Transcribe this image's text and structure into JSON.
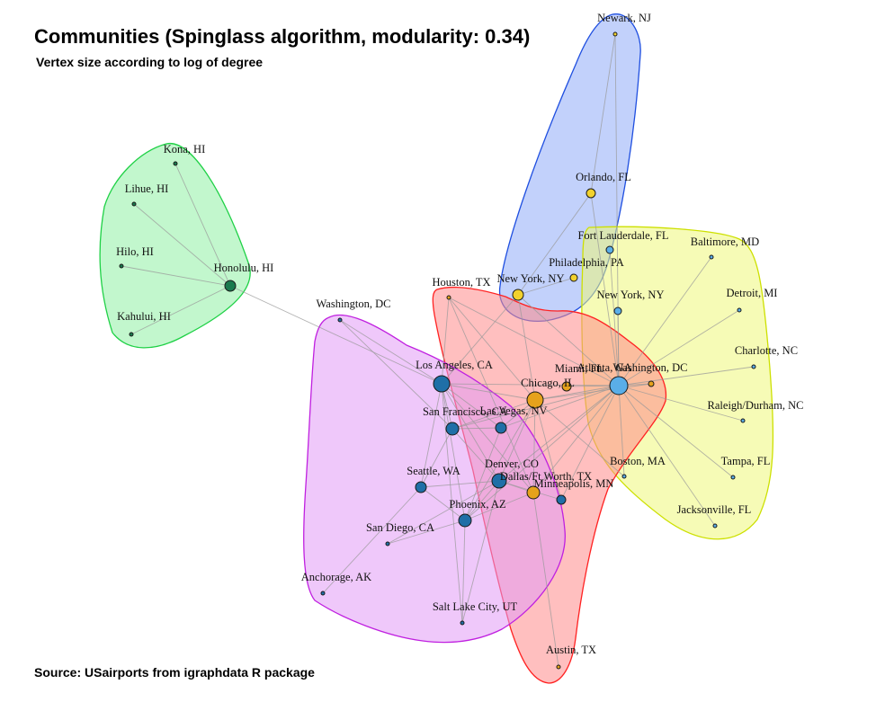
{
  "title": "Communities (Spinglass algorithm, modularity: 0.34)",
  "subtitle": "Vertex size according to log of degree",
  "caption": "Source: USairports from igraphdata R package",
  "colors": {
    "hawaii_fill": "#8ff0a4",
    "hawaii_border": "#1fd146",
    "northeast_fill": "#90acf7",
    "northeast_border": "#1f4fe0",
    "east_fill": "#eef77a",
    "east_border": "#cde000",
    "central_fill": "#ff8a8a",
    "central_border": "#ff2222",
    "west_fill": "#e29af5",
    "west_border": "#c020e0",
    "node_dark_green": "#1a7a4e",
    "node_dark_blue": "#1f6fa7",
    "node_light_blue": "#5aaee8",
    "node_yellow": "#f2d22e",
    "node_orange": "#e6a21c",
    "edge": "#9a9a9a"
  },
  "nodes": [
    {
      "id": "kona",
      "label": "Kona, HI",
      "color": "#1a7a4e"
    },
    {
      "id": "lihue",
      "label": "Lihue, HI",
      "color": "#1a7a4e"
    },
    {
      "id": "hilo",
      "label": "Hilo, HI",
      "color": "#1a7a4e"
    },
    {
      "id": "honolulu",
      "label": "Honolulu, HI",
      "color": "#1a7a4e"
    },
    {
      "id": "kahului",
      "label": "Kahului, HI",
      "color": "#1a7a4e"
    },
    {
      "id": "newark",
      "label": "Newark, NJ",
      "color": "#f2d22e"
    },
    {
      "id": "orlando",
      "label": "Orlando, FL",
      "color": "#f2d22e"
    },
    {
      "id": "philadelphia",
      "label": "Philadelphia, PA",
      "color": "#f2d22e"
    },
    {
      "id": "nyc_yellow",
      "label": "New York, NY",
      "color": "#f2d22e"
    },
    {
      "id": "fortlauderdale",
      "label": "Fort Lauderdale, FL",
      "color": "#5aaee8"
    },
    {
      "id": "baltimore",
      "label": "Baltimore, MD",
      "color": "#5aaee8"
    },
    {
      "id": "detroit",
      "label": "Detroit, MI",
      "color": "#5aaee8"
    },
    {
      "id": "nyc_blue",
      "label": "New York, NY",
      "color": "#5aaee8"
    },
    {
      "id": "charlotte",
      "label": "Charlotte, NC",
      "color": "#5aaee8"
    },
    {
      "id": "raleigh",
      "label": "Raleigh/Durham, NC",
      "color": "#5aaee8"
    },
    {
      "id": "tampa",
      "label": "Tampa, FL",
      "color": "#5aaee8"
    },
    {
      "id": "jacksonville",
      "label": "Jacksonville, FL",
      "color": "#5aaee8"
    },
    {
      "id": "boston",
      "label": "Boston, MA",
      "color": "#5aaee8"
    },
    {
      "id": "atlanta",
      "label": "Atlanta, GA",
      "color": "#5aaee8"
    },
    {
      "id": "washington_east",
      "label": "Washington, DC",
      "color": "#e6a21c"
    },
    {
      "id": "houston",
      "label": "Houston, TX",
      "color": "#e6a21c"
    },
    {
      "id": "miami",
      "label": "Miami, FL",
      "color": "#e6a21c"
    },
    {
      "id": "chicago",
      "label": "Chicago, IL",
      "color": "#e6a21c"
    },
    {
      "id": "dallas",
      "label": "Dallas/Ft Worth, TX",
      "color": "#e6a21c"
    },
    {
      "id": "minneapolis",
      "label": "Minneapolis, MN",
      "color": "#1f6fa7"
    },
    {
      "id": "austin",
      "label": "Austin, TX",
      "color": "#e6a21c"
    },
    {
      "id": "washington_west",
      "label": "Washington, DC",
      "color": "#1f6fa7"
    },
    {
      "id": "losangeles",
      "label": "Los Angeles, CA",
      "color": "#1f6fa7"
    },
    {
      "id": "sanfrancisco",
      "label": "San Francisco, CA",
      "color": "#1f6fa7"
    },
    {
      "id": "lasvegas",
      "label": "Las Vegas, NV",
      "color": "#1f6fa7"
    },
    {
      "id": "seattle",
      "label": "Seattle, WA",
      "color": "#1f6fa7"
    },
    {
      "id": "denver",
      "label": "Denver, CO",
      "color": "#1f6fa7"
    },
    {
      "id": "phoenix",
      "label": "Phoenix, AZ",
      "color": "#1f6fa7"
    },
    {
      "id": "sandiego",
      "label": "San Diego, CA",
      "color": "#1f6fa7"
    },
    {
      "id": "anchorage",
      "label": "Anchorage, AK",
      "color": "#1f6fa7"
    },
    {
      "id": "saltlake",
      "label": "Salt Lake City, UT",
      "color": "#1f6fa7"
    }
  ],
  "edges": [
    [
      "honolulu",
      "kona"
    ],
    [
      "honolulu",
      "lihue"
    ],
    [
      "honolulu",
      "hilo"
    ],
    [
      "honolulu",
      "kahului"
    ],
    [
      "honolulu",
      "losangeles"
    ],
    [
      "orlando",
      "newark"
    ],
    [
      "orlando",
      "nyc_yellow"
    ],
    [
      "orlando",
      "atlanta"
    ],
    [
      "philadelphia",
      "nyc_yellow"
    ],
    [
      "newark",
      "atlanta"
    ],
    [
      "nyc_yellow",
      "losangeles"
    ],
    [
      "nyc_yellow",
      "chicago"
    ],
    [
      "nyc_yellow",
      "atlanta"
    ],
    [
      "fortlauderdale",
      "atlanta"
    ],
    [
      "atlanta",
      "baltimore"
    ],
    [
      "atlanta",
      "detroit"
    ],
    [
      "atlanta",
      "nyc_blue"
    ],
    [
      "atlanta",
      "charlotte"
    ],
    [
      "atlanta",
      "raleigh"
    ],
    [
      "atlanta",
      "tampa"
    ],
    [
      "atlanta",
      "jacksonville"
    ],
    [
      "atlanta",
      "boston"
    ],
    [
      "atlanta",
      "washington_east"
    ],
    [
      "atlanta",
      "miami"
    ],
    [
      "atlanta",
      "chicago"
    ],
    [
      "atlanta",
      "dallas"
    ],
    [
      "atlanta",
      "minneapolis"
    ],
    [
      "atlanta",
      "denver"
    ],
    [
      "atlanta",
      "losangeles"
    ],
    [
      "atlanta",
      "houston"
    ],
    [
      "atlanta",
      "phoenix"
    ],
    [
      "atlanta",
      "lasvegas"
    ],
    [
      "atlanta",
      "sanfrancisco"
    ],
    [
      "chicago",
      "houston"
    ],
    [
      "chicago",
      "losangeles"
    ],
    [
      "chicago",
      "dallas"
    ],
    [
      "chicago",
      "minneapolis"
    ],
    [
      "chicago",
      "denver"
    ],
    [
      "chicago",
      "lasvegas"
    ],
    [
      "chicago",
      "sanfrancisco"
    ],
    [
      "chicago",
      "phoenix"
    ],
    [
      "chicago",
      "boston"
    ],
    [
      "chicago",
      "washington_east"
    ],
    [
      "houston",
      "dallas"
    ],
    [
      "houston",
      "losangeles"
    ],
    [
      "dallas",
      "austin"
    ],
    [
      "dallas",
      "losangeles"
    ],
    [
      "dallas",
      "denver"
    ],
    [
      "dallas",
      "phoenix"
    ],
    [
      "minneapolis",
      "denver"
    ],
    [
      "washington_west",
      "losangeles"
    ],
    [
      "washington_west",
      "sanfrancisco"
    ],
    [
      "losangeles",
      "sanfrancisco"
    ],
    [
      "losangeles",
      "lasvegas"
    ],
    [
      "losangeles",
      "seattle"
    ],
    [
      "losangeles",
      "phoenix"
    ],
    [
      "losangeles",
      "denver"
    ],
    [
      "sanfrancisco",
      "seattle"
    ],
    [
      "sanfrancisco",
      "denver"
    ],
    [
      "sanfrancisco",
      "lasvegas"
    ],
    [
      "seattle",
      "denver"
    ],
    [
      "seattle",
      "anchorage"
    ],
    [
      "seattle",
      "phoenix"
    ],
    [
      "denver",
      "phoenix"
    ],
    [
      "denver",
      "saltlake"
    ],
    [
      "phoenix",
      "sandiego"
    ],
    [
      "phoenix",
      "saltlake"
    ],
    [
      "lasvegas",
      "phoenix"
    ],
    [
      "sandiego",
      "denver"
    ],
    [
      "saltlake",
      "losangeles"
    ]
  ]
}
